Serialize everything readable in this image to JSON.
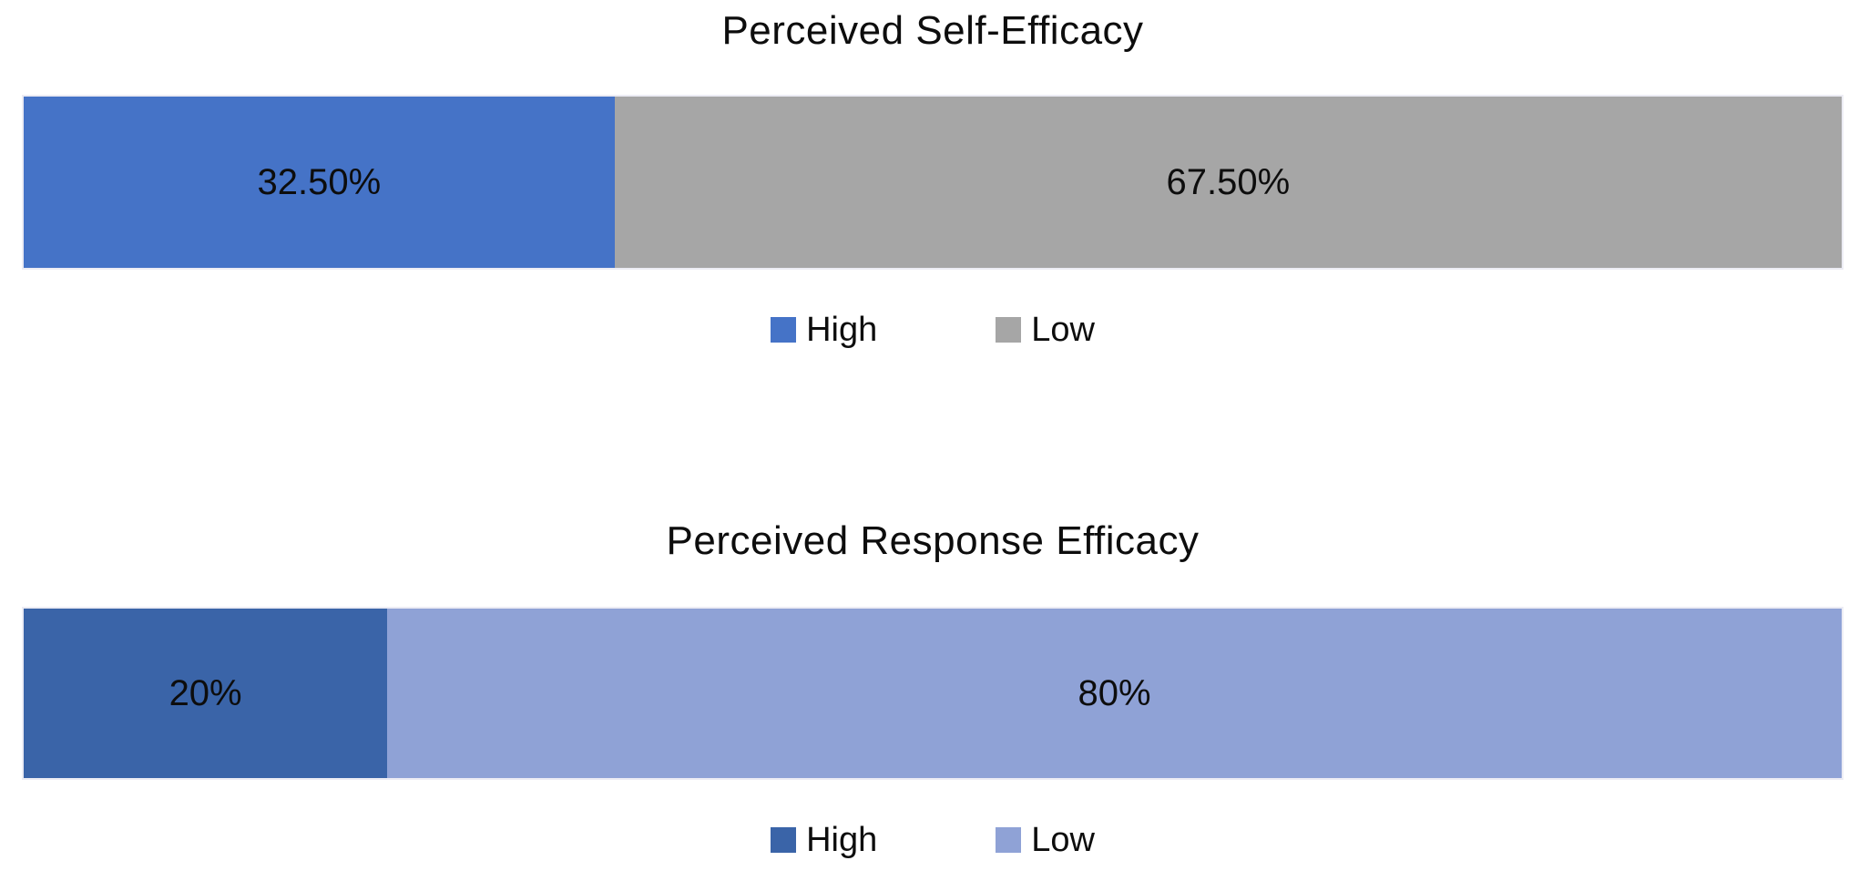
{
  "background": "#FFFFFF",
  "text_color": "#000000",
  "chart_data": [
    {
      "type": "bar",
      "subtype": "horizontal-stacked-100",
      "title": "Perceived Self-Efficacy",
      "categories": [
        ""
      ],
      "series": [
        {
          "name": "High",
          "values": [
            32.5
          ],
          "data_label": "32.50%",
          "color": "#4573C7"
        },
        {
          "name": "Low",
          "values": [
            67.5
          ],
          "data_label": "67.50%",
          "color": "#A6A6A6"
        }
      ],
      "xlim": [
        0,
        100
      ],
      "legend_position": "bottom",
      "grid": false,
      "axes_visible": false
    },
    {
      "type": "bar",
      "subtype": "horizontal-stacked-100",
      "title": "Perceived Response Efficacy",
      "categories": [
        ""
      ],
      "series": [
        {
          "name": "High",
          "values": [
            20
          ],
          "data_label": "20%",
          "color": "#3A64A8"
        },
        {
          "name": "Low",
          "values": [
            80
          ],
          "data_label": "80%",
          "color": "#8FA2D6"
        }
      ],
      "xlim": [
        0,
        100
      ],
      "legend_position": "bottom",
      "grid": false,
      "axes_visible": false
    }
  ]
}
